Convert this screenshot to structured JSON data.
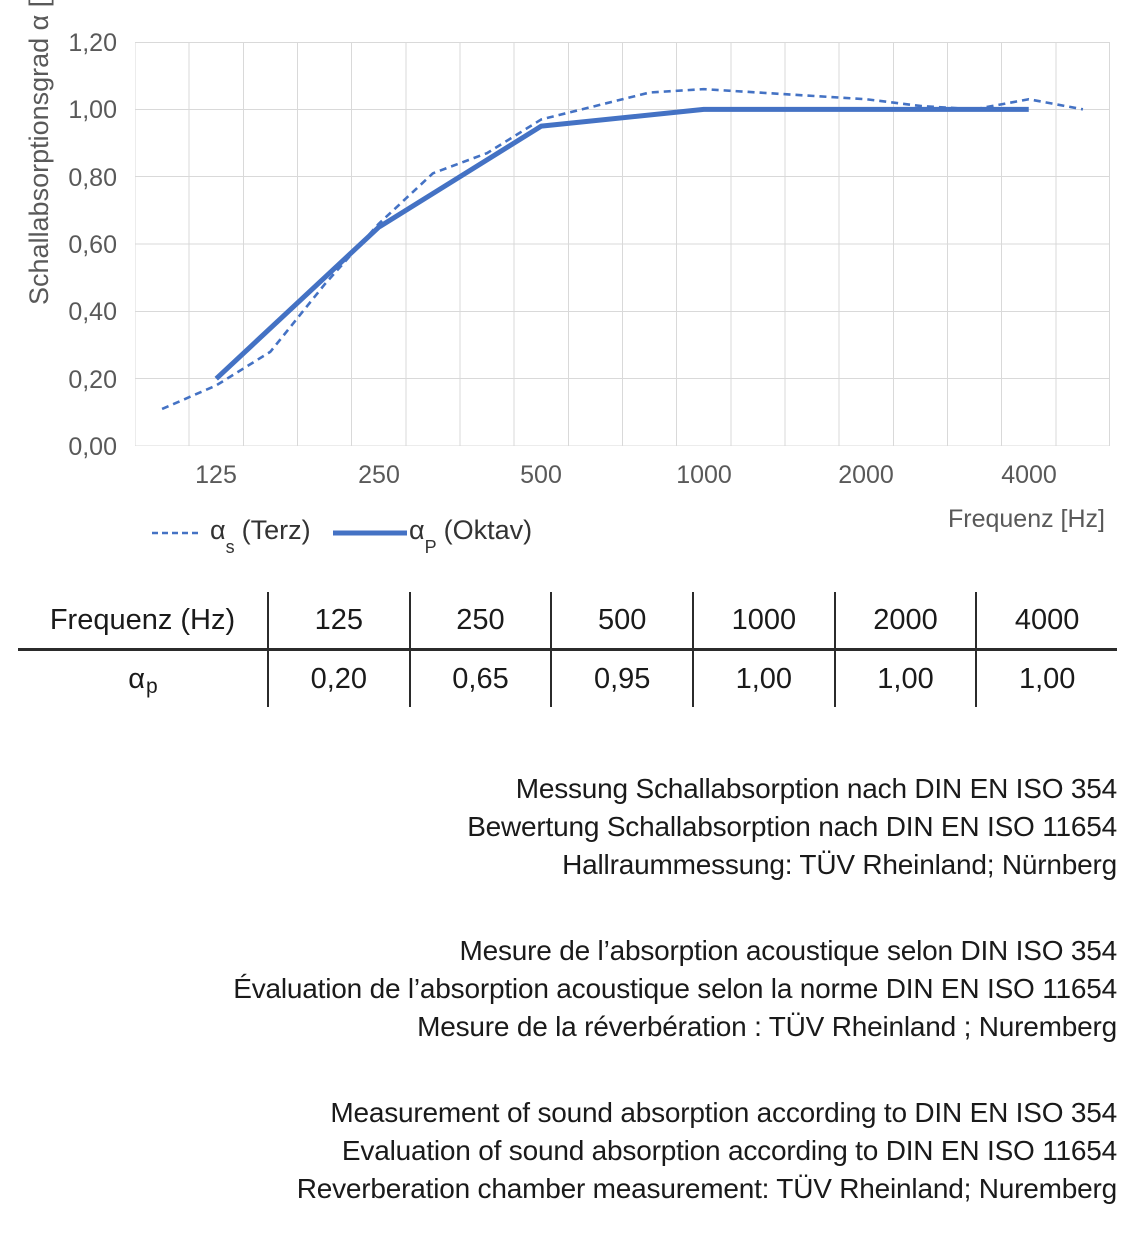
{
  "chart_data": {
    "type": "line",
    "ylabel": "Schallabsorptionsgrad α [-]",
    "xlabel": "Frequenz [Hz]",
    "ylim": [
      0,
      1.2
    ],
    "yticks": [
      0,
      0.2,
      0.4,
      0.6,
      0.8,
      1.0,
      1.2
    ],
    "ytick_labels_top_to_bottom": [
      "1,20",
      "1,00",
      "0,80",
      "0,60",
      "0,40",
      "0,20",
      "0,00"
    ],
    "categories": [
      100,
      125,
      160,
      200,
      250,
      315,
      400,
      500,
      630,
      800,
      1000,
      1250,
      1600,
      2000,
      2500,
      3150,
      4000,
      5000
    ],
    "xtick_labels": [
      "125",
      "250",
      "500",
      "1000",
      "2000",
      "4000"
    ],
    "xtick_category_indices": [
      1,
      4,
      7,
      10,
      13,
      16
    ],
    "grid": true,
    "legend_position": "bottom-left",
    "series": [
      {
        "name": "αs (Terz)",
        "style": "dashed",
        "values": [
          0.11,
          0.18,
          0.28,
          0.48,
          0.66,
          0.81,
          0.87,
          0.97,
          1.01,
          1.05,
          1.06,
          1.05,
          1.04,
          1.03,
          1.01,
          1.0,
          1.03,
          1.0
        ]
      },
      {
        "name": "αP (Oktav)",
        "style": "solid",
        "category_indices": [
          1,
          4,
          7,
          10,
          13,
          16
        ],
        "values": [
          0.2,
          0.65,
          0.95,
          1.0,
          1.0,
          1.0
        ]
      }
    ],
    "legend": [
      {
        "alpha": "α",
        "sub": "s",
        "rest": "(Terz)",
        "style": "dashed"
      },
      {
        "alpha": "α",
        "sub": "P",
        "rest": "(Oktav)",
        "style": "solid"
      }
    ]
  },
  "table": {
    "header_label": "Frequenz (Hz)",
    "header_values": [
      "125",
      "250",
      "500",
      "1000",
      "2000",
      "4000"
    ],
    "row_label_alpha": "α",
    "row_label_sub": "p",
    "row_values": [
      "0,20",
      "0,65",
      "0,95",
      "1,00",
      "1,00",
      "1,00"
    ]
  },
  "notes": {
    "german": [
      "Messung Schallabsorption nach DIN EN ISO 354",
      "Bewertung Schallabsorption nach DIN EN ISO 11654",
      "Hallraummessung: TÜV Rheinland; Nürnberg"
    ],
    "french": [
      "Mesure de l’absorption acoustique selon DIN ISO 354",
      "Évaluation de l’absorption acoustique selon la norme DIN EN ISO 11654",
      "Mesure de la réverbération : TÜV Rheinland ; Nuremberg"
    ],
    "english": [
      "Measurement of sound absorption according to DIN EN ISO 354",
      "Evaluation of sound absorption according to DIN EN ISO 11654",
      "Reverberation chamber measurement: TÜV Rheinland; Nuremberg"
    ]
  },
  "colors": {
    "line_blue": "#4472C4",
    "gridline": "#D9D9D9",
    "axis_text": "#595959",
    "body_text": "#1a1a1a"
  }
}
